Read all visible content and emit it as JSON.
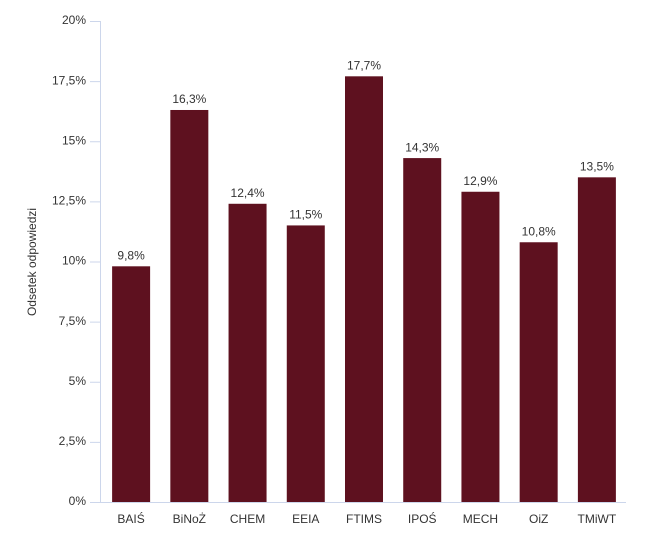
{
  "chart_data": {
    "type": "bar",
    "y_label": "Odsetek odpowiedzi",
    "categories": [
      "BAIŚ",
      "BiNoŻ",
      "CHEM",
      "EEIA",
      "FTIMS",
      "IPOŚ",
      "MECH",
      "OiZ",
      "TMiWT"
    ],
    "values": [
      9.8,
      16.3,
      12.4,
      11.5,
      17.7,
      14.3,
      12.9,
      10.8,
      13.5
    ],
    "value_labels": [
      "9,8%",
      "16,3%",
      "12,4%",
      "11,5%",
      "17,7%",
      "14,3%",
      "12,9%",
      "10,8%",
      "13,5%"
    ],
    "color": "#5e111f",
    "ylim": [
      0,
      20
    ],
    "yticks": [
      {
        "value": 0,
        "label": "0%"
      },
      {
        "value": 2.5,
        "label": "2,5%"
      },
      {
        "value": 5,
        "label": "5%"
      },
      {
        "value": 7.5,
        "label": "7,5%"
      },
      {
        "value": 10,
        "label": "10%"
      },
      {
        "value": 12.5,
        "label": "12,5%"
      },
      {
        "value": 15,
        "label": "15%"
      },
      {
        "value": 17.5,
        "label": "17,5%"
      },
      {
        "value": 20,
        "label": "20%"
      }
    ],
    "grid": false
  }
}
